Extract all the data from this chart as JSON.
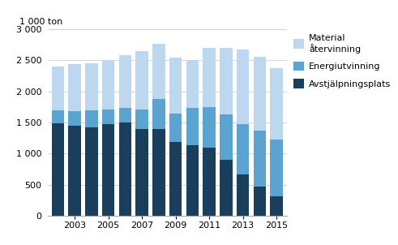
{
  "years": [
    2002,
    2003,
    2004,
    2005,
    2006,
    2007,
    2008,
    2009,
    2010,
    2011,
    2012,
    2013,
    2014,
    2015
  ],
  "avstjalpningsplats": [
    1490,
    1450,
    1420,
    1475,
    1500,
    1400,
    1390,
    1180,
    1140,
    1100,
    900,
    660,
    470,
    310
  ],
  "energiutvinning": [
    210,
    230,
    270,
    230,
    240,
    310,
    490,
    470,
    600,
    650,
    730,
    820,
    900,
    910
  ],
  "materialatervinning": [
    700,
    760,
    760,
    790,
    840,
    940,
    890,
    900,
    760,
    950,
    1070,
    1190,
    1190,
    1150
  ],
  "color_avstjalpningsplats": "#1a3f5c",
  "color_energiutvinning": "#5ba3d0",
  "color_materialatervinning": "#bdd7ee",
  "ylabel": "1 000 ton",
  "ylim": [
    0,
    3000
  ],
  "yticks": [
    0,
    500,
    1000,
    1500,
    2000,
    2500,
    3000
  ],
  "legend_labels": [
    "Material\nåtervinning",
    "Energiutvinning",
    "Avstjälpningsplats"
  ],
  "bar_width": 0.75,
  "background_color": "#ffffff",
  "grid_color": "#cccccc",
  "figsize": [
    4.91,
    3.02
  ],
  "dpi": 100
}
